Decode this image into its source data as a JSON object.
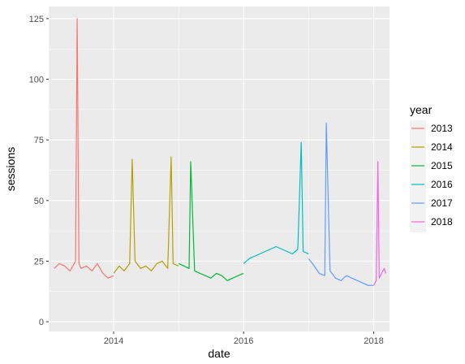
{
  "chart_data": {
    "type": "line",
    "title": "",
    "xlabel": "date",
    "ylabel": "sessions",
    "xlim": [
      "2013-01-01",
      "2018-03-31"
    ],
    "ylim": [
      -4,
      130
    ],
    "x_ticks": [
      "2014",
      "2016",
      "2018"
    ],
    "y_ticks": [
      "0",
      "25",
      "50",
      "75",
      "100",
      "125"
    ],
    "grid": true,
    "legend": {
      "title": "year",
      "position": "right"
    },
    "series": [
      {
        "name": "2013",
        "color": "#F8766D",
        "x": [
          "2013-02-01",
          "2013-03-01",
          "2013-04-01",
          "2013-05-01",
          "2013-06-01",
          "2013-06-10",
          "2013-06-20",
          "2013-07-01",
          "2013-08-01",
          "2013-09-01",
          "2013-10-01",
          "2013-11-01",
          "2013-12-01",
          "2013-12-31"
        ],
        "y": [
          22,
          24,
          23,
          21,
          25,
          125,
          24,
          22,
          23,
          21,
          24,
          20,
          18,
          19
        ]
      },
      {
        "name": "2014",
        "color": "#B79F00",
        "x": [
          "2014-01-01",
          "2014-02-01",
          "2014-03-01",
          "2014-04-01",
          "2014-04-15",
          "2014-05-01",
          "2014-06-01",
          "2014-07-01",
          "2014-08-01",
          "2014-09-01",
          "2014-10-01",
          "2014-11-01",
          "2014-11-20",
          "2014-12-01",
          "2014-12-31"
        ],
        "y": [
          20,
          23,
          21,
          24,
          67,
          25,
          22,
          23,
          21,
          24,
          25,
          22,
          68,
          24,
          23
        ]
      },
      {
        "name": "2015",
        "color": "#00BA38",
        "x": [
          "2015-01-01",
          "2015-02-01",
          "2015-03-01",
          "2015-03-10",
          "2015-04-01",
          "2015-05-01",
          "2015-06-01",
          "2015-07-01",
          "2015-08-01",
          "2015-09-01",
          "2015-10-01",
          "2015-11-01",
          "2015-12-01",
          "2015-12-31"
        ],
        "y": [
          24,
          23,
          22,
          66,
          21,
          20,
          19,
          18,
          20,
          19,
          17,
          18,
          19,
          20
        ]
      },
      {
        "name": "2016",
        "color": "#00BFC4",
        "x": [
          "2016-01-01",
          "2016-02-01",
          "2016-03-01",
          "2016-04-01",
          "2016-05-01",
          "2016-06-01",
          "2016-07-01",
          "2016-08-01",
          "2016-09-01",
          "2016-10-01",
          "2016-11-01",
          "2016-11-20",
          "2016-12-01",
          "2016-12-31"
        ],
        "y": [
          24,
          26,
          27,
          28,
          29,
          30,
          31,
          30,
          29,
          28,
          30,
          74,
          29,
          28
        ]
      },
      {
        "name": "2017",
        "color": "#619CFF",
        "x": [
          "2017-01-01",
          "2017-02-01",
          "2017-03-01",
          "2017-04-01",
          "2017-04-10",
          "2017-05-01",
          "2017-06-01",
          "2017-07-01",
          "2017-08-01",
          "2017-09-01",
          "2017-10-01",
          "2017-11-01",
          "2017-12-01",
          "2017-12-31"
        ],
        "y": [
          26,
          23,
          20,
          19,
          82,
          21,
          18,
          17,
          19,
          18,
          17,
          16,
          15,
          15
        ]
      },
      {
        "name": "2018",
        "color": "#F564E3",
        "x": [
          "2018-01-01",
          "2018-01-15",
          "2018-01-25",
          "2018-02-01",
          "2018-02-15",
          "2018-03-01",
          "2018-03-10"
        ],
        "y": [
          15,
          17,
          66,
          18,
          20,
          22,
          20
        ]
      }
    ]
  }
}
